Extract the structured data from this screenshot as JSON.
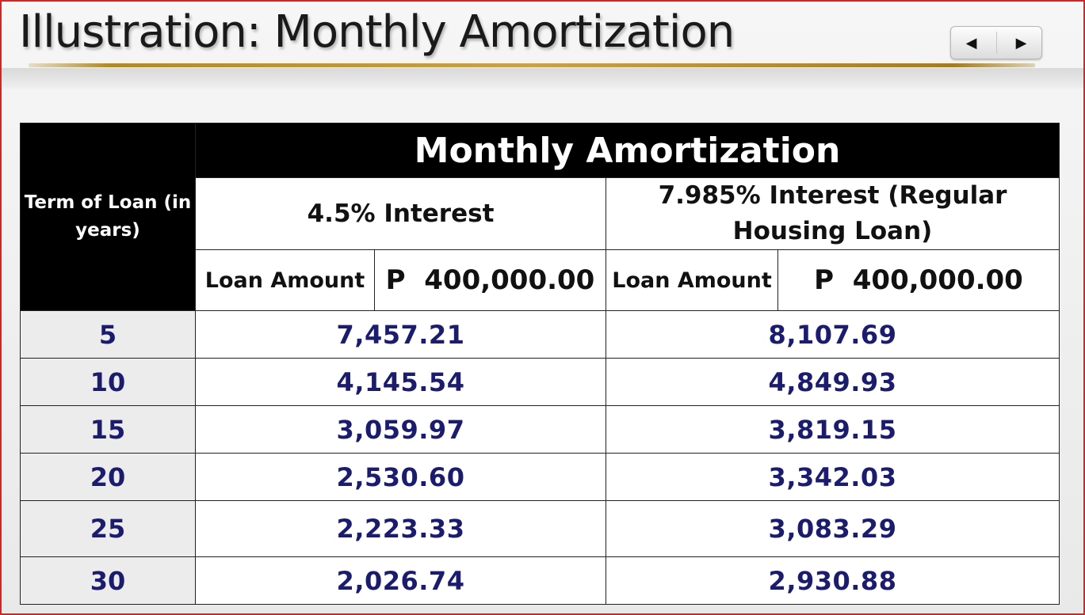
{
  "slide": {
    "title": "Illustration: Monthly Amortization"
  },
  "nav": {
    "prev_icon": "◀",
    "next_icon": "▶"
  },
  "table": {
    "main_header": "Monthly Amortization",
    "term_header": "Term of Loan (in years)",
    "column_a": {
      "header": "4.5% Interest",
      "loan_label": "Loan Amount",
      "loan_amount": "P  400,000.00"
    },
    "column_b": {
      "header": "7.985% Interest (Regular Housing Loan)",
      "loan_label": "Loan Amount",
      "loan_amount": "P  400,000.00"
    },
    "rows": [
      {
        "term": "5",
        "a": "7,457.21",
        "b": "8,107.69"
      },
      {
        "term": "10",
        "a": "4,145.54",
        "b": "4,849.93"
      },
      {
        "term": "15",
        "a": "3,059.97",
        "b": "3,819.15"
      },
      {
        "term": "20",
        "a": "2,530.60",
        "b": "3,342.03"
      },
      {
        "term": "25",
        "a": "2,223.33",
        "b": "3,083.29"
      },
      {
        "term": "30",
        "a": "2,026.74",
        "b": "2,930.88"
      }
    ]
  },
  "colors": {
    "frame_border": "#e02020",
    "header_black": "#000000",
    "value_text": "#1c1c6e",
    "term_cell_bg": "#ececec",
    "title_underline": "#c9a24a"
  }
}
